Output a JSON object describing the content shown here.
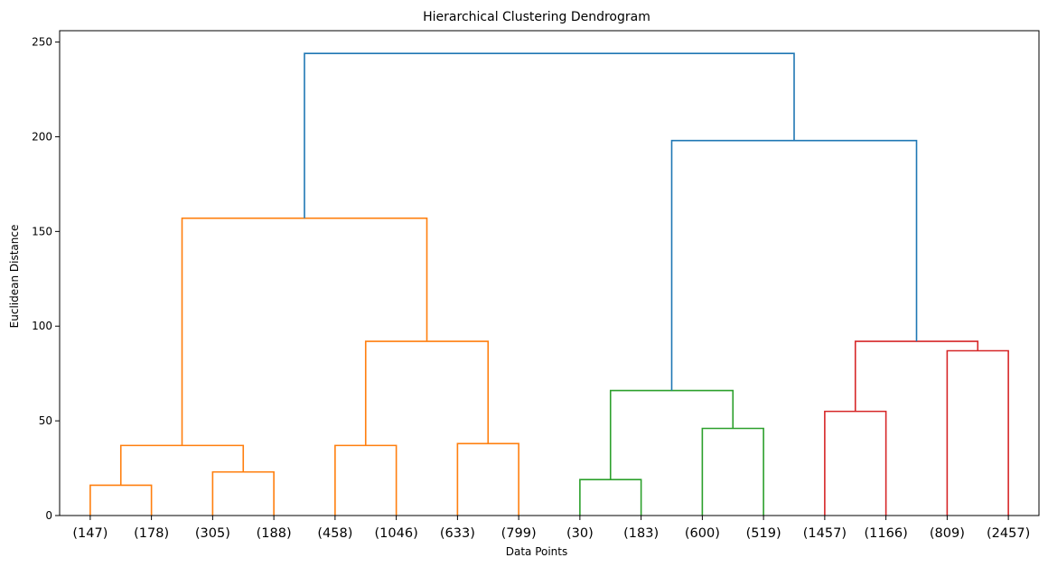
{
  "chart_data": {
    "type": "dendrogram",
    "title": "Hierarchical Clustering Dendrogram",
    "xlabel": "Data Points",
    "ylabel": "Euclidean Distance",
    "ylim": [
      0,
      256
    ],
    "yticks": [
      0,
      50,
      100,
      150,
      200,
      250
    ],
    "grid": false,
    "leaves": [
      "(147)",
      "(178)",
      "(305)",
      "(188)",
      "(458)",
      "(1046)",
      "(633)",
      "(799)",
      "(30)",
      "(183)",
      "(600)",
      "(519)",
      "(1457)",
      "(1166)",
      "(809)",
      "(2457)"
    ],
    "colors": {
      "orange": "#ff7f0e",
      "green": "#2ca02c",
      "red": "#d62728",
      "blue": "#1f77b4"
    },
    "merges": [
      {
        "id": "m1",
        "left": 0,
        "right": 1,
        "height": 16,
        "color": "orange"
      },
      {
        "id": "m2",
        "left": 2,
        "right": 3,
        "height": 23,
        "color": "orange"
      },
      {
        "id": "m3",
        "left": "m1",
        "right": "m2",
        "height": 37,
        "color": "orange"
      },
      {
        "id": "m4",
        "left": 4,
        "right": 5,
        "height": 37,
        "color": "orange"
      },
      {
        "id": "m5",
        "left": 6,
        "right": 7,
        "height": 38,
        "color": "orange"
      },
      {
        "id": "m6",
        "left": "m4",
        "right": "m5",
        "height": 92,
        "color": "orange"
      },
      {
        "id": "m7",
        "left": "m3",
        "right": "m6",
        "height": 157,
        "color": "orange"
      },
      {
        "id": "m8",
        "left": 8,
        "right": 9,
        "height": 19,
        "color": "green"
      },
      {
        "id": "m9",
        "left": 10,
        "right": 11,
        "height": 46,
        "color": "green"
      },
      {
        "id": "m10",
        "left": "m8",
        "right": "m9",
        "height": 66,
        "color": "green"
      },
      {
        "id": "m11",
        "left": 12,
        "right": 13,
        "height": 55,
        "color": "red"
      },
      {
        "id": "m12",
        "left": 14,
        "right": 15,
        "height": 87,
        "color": "red"
      },
      {
        "id": "m13",
        "left": "m11",
        "right": "m12",
        "height": 92,
        "color": "red"
      },
      {
        "id": "m14",
        "left": "m10",
        "right": "m13",
        "height": 198,
        "color": "blue"
      },
      {
        "id": "m15",
        "left": "m7",
        "right": "m14",
        "height": 244,
        "color": "blue"
      }
    ]
  }
}
